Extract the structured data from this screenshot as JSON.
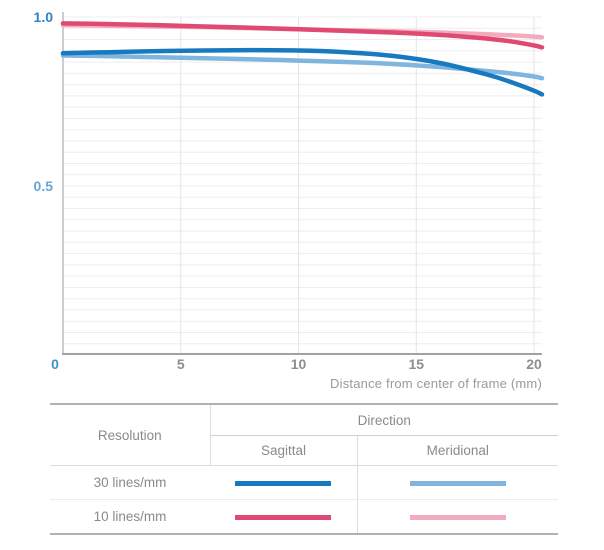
{
  "chart_data": {
    "type": "line",
    "title": "",
    "xlabel": "Distance from center of frame (mm)",
    "ylabel": "",
    "xlim": [
      0,
      21.6
    ],
    "ylim": [
      0,
      1.0
    ],
    "grid": true,
    "legend_position": "table-below",
    "x_ticks": [
      {
        "label": "0",
        "value": 0,
        "color": "#3f90c8"
      },
      {
        "label": "5",
        "value": 5,
        "color": "#8e8e8e"
      },
      {
        "label": "10",
        "value": 10,
        "color": "#8e8e8e"
      },
      {
        "label": "15",
        "value": 15,
        "color": "#8e8e8e"
      },
      {
        "label": "20",
        "value": 20,
        "color": "#8e8e8e"
      }
    ],
    "y_ticks": [
      {
        "label": "1.0",
        "value": 1.0,
        "color": "#2f81c2"
      },
      {
        "label": "0.5",
        "value": 0.5,
        "color": "#66a5d7"
      }
    ],
    "x": [
      0,
      2,
      4,
      6,
      8,
      10,
      12,
      14,
      16,
      18,
      19,
      20,
      20.35
    ],
    "series": [
      {
        "name": "30 lines/mm Sagittal",
        "resolution": "30 lines/mm",
        "direction": "Sagittal",
        "color": "#1878c0",
        "values": [
          0.893,
          0.896,
          0.899,
          0.901,
          0.902,
          0.901,
          0.896,
          0.885,
          0.864,
          0.83,
          0.808,
          0.782,
          0.771
        ]
      },
      {
        "name": "30 lines/mm Meridional",
        "resolution": "30 lines/mm",
        "direction": "Meridional",
        "color": "#7fb5de",
        "values": [
          0.886,
          0.884,
          0.881,
          0.878,
          0.875,
          0.871,
          0.867,
          0.861,
          0.852,
          0.84,
          0.833,
          0.824,
          0.819
        ]
      },
      {
        "name": "10 lines/mm Sagittal",
        "resolution": "10 lines/mm",
        "direction": "Sagittal",
        "color": "#e04a72",
        "values": [
          0.981,
          0.979,
          0.976,
          0.972,
          0.968,
          0.964,
          0.959,
          0.954,
          0.947,
          0.936,
          0.928,
          0.916,
          0.91
        ]
      },
      {
        "name": "10 lines/mm Meridional",
        "resolution": "10 lines/mm",
        "direction": "Meridional",
        "color": "#f2abbd",
        "values": [
          0.976,
          0.974,
          0.972,
          0.97,
          0.967,
          0.964,
          0.961,
          0.958,
          0.954,
          0.949,
          0.946,
          0.942,
          0.94
        ]
      }
    ]
  },
  "legend_table": {
    "resolution_header": "Resolution",
    "direction_header": "Direction",
    "sagittal_header": "Sagittal",
    "meridional_header": "Meridional",
    "rows": [
      {
        "resolution": "30 lines/mm",
        "sagittal_series": 0,
        "meridional_series": 1
      },
      {
        "resolution": "10 lines/mm",
        "sagittal_series": 2,
        "meridional_series": 3
      }
    ]
  }
}
